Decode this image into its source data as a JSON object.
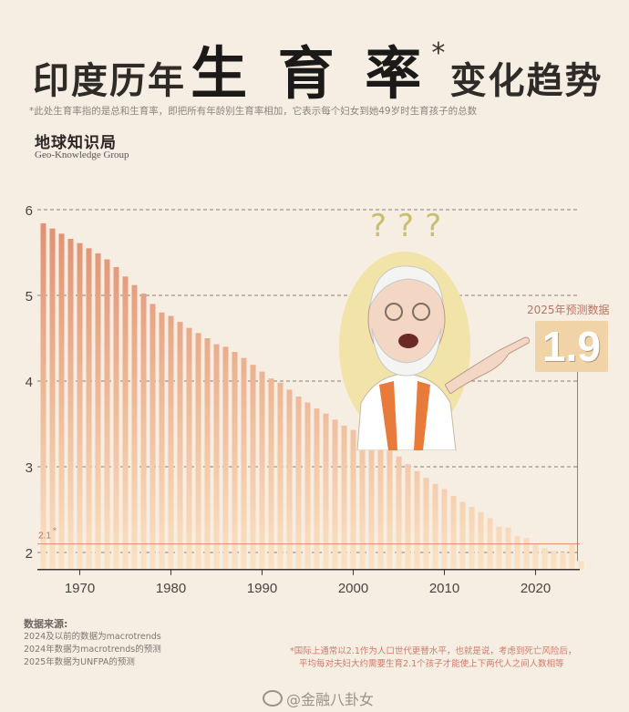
{
  "header": {
    "title_part1": "印度历年",
    "title_part2": "生 育 率",
    "title_star": "*",
    "title_part3": "变化趋势",
    "subnote": "*此处生育率指的是总和生育率，即把所有年龄别生育率相加，它表示每个妇女到她49岁时生育孩子的总数",
    "brand_cn": "地球知识局",
    "brand_en": "Geo-Knowledge Group"
  },
  "forecast": {
    "label": "2025年预测数据",
    "value": "1.9"
  },
  "sources": {
    "heading": "数据来源:",
    "lines": [
      "2024及以前的数据为macrotrends",
      "2024年数据为macrotrends的预测",
      "2025年数据为UNFPA的预测"
    ]
  },
  "footnote": {
    "line1": "*国际上通常以2.1作为人口世代更替水平，也就是说，考虑到死亡风险后，",
    "line2": "平均每对夫妇大约需要生育2.1个孩子才能使上下两代人之间人数相等"
  },
  "watermark": "@金融八卦女",
  "colors": {
    "bar_top": "#e08d6c",
    "bar_bottom": "#fbe2c2",
    "grid": "#8a8078",
    "ref_line": "#e08d6c",
    "accent": "#c0715a"
  },
  "chart_data": {
    "type": "bar",
    "x": [
      1966,
      1967,
      1968,
      1969,
      1970,
      1971,
      1972,
      1973,
      1974,
      1975,
      1976,
      1977,
      1978,
      1979,
      1980,
      1981,
      1982,
      1983,
      1984,
      1985,
      1986,
      1987,
      1988,
      1989,
      1990,
      1991,
      1992,
      1993,
      1994,
      1995,
      1996,
      1997,
      1998,
      1999,
      2000,
      2001,
      2002,
      2003,
      2004,
      2005,
      2006,
      2007,
      2008,
      2009,
      2010,
      2011,
      2012,
      2013,
      2014,
      2015,
      2016,
      2017,
      2018,
      2019,
      2020,
      2021,
      2022,
      2023,
      2024,
      2025
    ],
    "values": [
      5.84,
      5.78,
      5.72,
      5.66,
      5.61,
      5.55,
      5.49,
      5.42,
      5.33,
      5.22,
      5.12,
      5.02,
      4.9,
      4.8,
      4.76,
      4.69,
      4.62,
      4.56,
      4.5,
      4.43,
      4.4,
      4.34,
      4.27,
      4.19,
      4.11,
      4.03,
      3.98,
      3.9,
      3.82,
      3.75,
      3.68,
      3.62,
      3.55,
      3.48,
      3.43,
      3.35,
      3.32,
      3.27,
      3.19,
      3.12,
      3.03,
      2.95,
      2.87,
      2.8,
      2.74,
      2.66,
      2.59,
      2.53,
      2.47,
      2.4,
      2.3,
      2.29,
      2.19,
      2.17,
      2.1,
      2.05,
      2.02,
      2.0,
      2.1,
      1.9
    ],
    "xticks": [
      "1970",
      "1980",
      "1990",
      "2000",
      "2010",
      "2020"
    ],
    "yticks": [
      "2",
      "3",
      "4",
      "5",
      "6"
    ],
    "ylim": [
      1.8,
      6.1
    ],
    "reference_line": {
      "value": 2.1,
      "label": "2.1",
      "star": "*"
    },
    "grid": "horizontal-dashed"
  }
}
